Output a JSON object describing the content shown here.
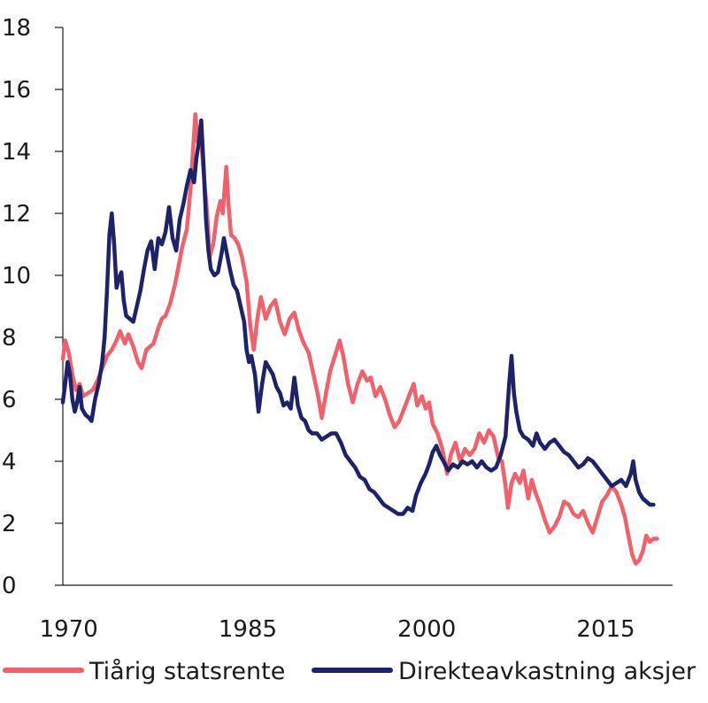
{
  "chart_data": {
    "type": "line",
    "title": "",
    "xlabel": "",
    "ylabel": "",
    "xlim": [
      1969.5,
      2020.6
    ],
    "ylim": [
      0,
      18
    ],
    "x_ticks": [
      1970,
      1985,
      2000,
      2015
    ],
    "x_tick_labels": [
      "1970",
      "1985",
      "2000",
      "2015"
    ],
    "y_ticks": [
      0,
      2,
      4,
      6,
      8,
      10,
      12,
      14,
      16,
      18
    ],
    "y_tick_labels": [
      "0",
      "2",
      "4",
      "6",
      "8",
      "10",
      "12",
      "14",
      "16",
      "18"
    ],
    "grid": false,
    "legend_position": "bottom",
    "series": [
      {
        "name": "Tiårig statsrente",
        "color": "#f0616b",
        "points": [
          [
            1969.5,
            7.3
          ],
          [
            1969.7,
            7.9
          ],
          [
            1970.0,
            7.5
          ],
          [
            1970.3,
            6.8
          ],
          [
            1970.6,
            6.3
          ],
          [
            1970.9,
            6.5
          ],
          [
            1971.2,
            6.1
          ],
          [
            1971.6,
            6.2
          ],
          [
            1972.0,
            6.3
          ],
          [
            1972.4,
            6.6
          ],
          [
            1972.8,
            7.0
          ],
          [
            1973.2,
            7.4
          ],
          [
            1973.6,
            7.6
          ],
          [
            1974.0,
            7.9
          ],
          [
            1974.3,
            8.2
          ],
          [
            1974.7,
            7.8
          ],
          [
            1975.0,
            8.1
          ],
          [
            1975.4,
            7.7
          ],
          [
            1975.8,
            7.2
          ],
          [
            1976.1,
            7.0
          ],
          [
            1976.5,
            7.6
          ],
          [
            1976.8,
            7.7
          ],
          [
            1977.1,
            7.8
          ],
          [
            1977.5,
            8.3
          ],
          [
            1977.8,
            8.6
          ],
          [
            1978.1,
            8.7
          ],
          [
            1978.5,
            9.1
          ],
          [
            1978.9,
            9.7
          ],
          [
            1979.2,
            10.3
          ],
          [
            1979.5,
            10.9
          ],
          [
            1979.9,
            11.5
          ],
          [
            1980.2,
            12.8
          ],
          [
            1980.4,
            14.0
          ],
          [
            1980.6,
            15.2
          ],
          [
            1980.8,
            14.3
          ],
          [
            1981.0,
            14.8
          ],
          [
            1981.3,
            13.3
          ],
          [
            1981.6,
            12.0
          ],
          [
            1981.8,
            10.6
          ],
          [
            1982.1,
            11.0
          ],
          [
            1982.4,
            11.9
          ],
          [
            1982.7,
            12.4
          ],
          [
            1982.9,
            12.0
          ],
          [
            1983.1,
            13.0
          ],
          [
            1983.2,
            13.5
          ],
          [
            1983.4,
            12.2
          ],
          [
            1983.6,
            11.3
          ],
          [
            1983.9,
            11.2
          ],
          [
            1984.2,
            11.0
          ],
          [
            1984.5,
            10.6
          ],
          [
            1984.9,
            9.8
          ],
          [
            1985.2,
            8.4
          ],
          [
            1985.5,
            7.6
          ],
          [
            1985.8,
            8.6
          ],
          [
            1986.1,
            9.3
          ],
          [
            1986.5,
            8.6
          ],
          [
            1986.9,
            9.0
          ],
          [
            1987.3,
            9.2
          ],
          [
            1987.7,
            8.5
          ],
          [
            1988.1,
            8.1
          ],
          [
            1988.5,
            8.6
          ],
          [
            1988.9,
            8.8
          ],
          [
            1989.3,
            8.2
          ],
          [
            1989.7,
            7.8
          ],
          [
            1990.1,
            7.5
          ],
          [
            1990.5,
            6.8
          ],
          [
            1990.9,
            6.1
          ],
          [
            1991.2,
            5.4
          ],
          [
            1991.6,
            6.3
          ],
          [
            1991.9,
            6.9
          ],
          [
            1992.3,
            7.4
          ],
          [
            1992.7,
            7.9
          ],
          [
            1993.0,
            7.4
          ],
          [
            1993.4,
            6.5
          ],
          [
            1993.8,
            5.9
          ],
          [
            1994.2,
            6.5
          ],
          [
            1994.6,
            6.9
          ],
          [
            1995.0,
            6.6
          ],
          [
            1995.3,
            6.7
          ],
          [
            1995.7,
            6.1
          ],
          [
            1996.1,
            6.4
          ],
          [
            1996.5,
            6.0
          ],
          [
            1996.9,
            5.5
          ],
          [
            1997.3,
            5.1
          ],
          [
            1997.7,
            5.3
          ],
          [
            1998.1,
            5.7
          ],
          [
            1998.5,
            6.1
          ],
          [
            1998.9,
            6.5
          ],
          [
            1999.2,
            5.8
          ],
          [
            1999.6,
            6.1
          ],
          [
            1999.9,
            5.7
          ],
          [
            2000.2,
            5.9
          ],
          [
            2000.5,
            5.2
          ],
          [
            2000.9,
            4.9
          ],
          [
            2001.3,
            4.4
          ],
          [
            2001.7,
            3.6
          ],
          [
            2002.0,
            4.2
          ],
          [
            2002.4,
            4.6
          ],
          [
            2002.8,
            4.0
          ],
          [
            2003.2,
            4.4
          ],
          [
            2003.6,
            4.2
          ],
          [
            2004.0,
            4.4
          ],
          [
            2004.4,
            4.9
          ],
          [
            2004.8,
            4.6
          ],
          [
            2005.2,
            5.0
          ],
          [
            2005.6,
            4.8
          ],
          [
            2006.0,
            4.1
          ],
          [
            2006.3,
            4.0
          ],
          [
            2006.6,
            3.2
          ],
          [
            2006.8,
            2.5
          ],
          [
            2007.1,
            3.3
          ],
          [
            2007.4,
            3.6
          ],
          [
            2007.8,
            3.3
          ],
          [
            2008.1,
            3.7
          ],
          [
            2008.5,
            2.8
          ],
          [
            2008.8,
            3.4
          ],
          [
            2009.1,
            3.0
          ],
          [
            2009.5,
            2.6
          ],
          [
            2009.9,
            2.1
          ],
          [
            2010.3,
            1.7
          ],
          [
            2010.7,
            1.9
          ],
          [
            2011.1,
            2.2
          ],
          [
            2011.5,
            2.7
          ],
          [
            2011.9,
            2.6
          ],
          [
            2012.3,
            2.3
          ],
          [
            2012.7,
            2.2
          ],
          [
            2013.1,
            2.4
          ],
          [
            2013.5,
            2.0
          ],
          [
            2013.9,
            1.7
          ],
          [
            2014.3,
            2.2
          ],
          [
            2014.7,
            2.7
          ],
          [
            2015.1,
            2.9
          ],
          [
            2015.5,
            3.2
          ],
          [
            2015.9,
            3.0
          ],
          [
            2016.3,
            2.6
          ],
          [
            2016.6,
            2.2
          ],
          [
            2016.9,
            1.6
          ],
          [
            2017.2,
            1.0
          ],
          [
            2017.5,
            0.7
          ],
          [
            2017.8,
            0.8
          ],
          [
            2018.1,
            1.1
          ],
          [
            2018.4,
            1.6
          ],
          [
            2018.7,
            1.4
          ],
          [
            2019.0,
            1.5
          ],
          [
            2019.3,
            1.5
          ]
        ]
      },
      {
        "name": "Direkteavkastning aksjer",
        "color": "#1e2268",
        "points": [
          [
            1969.5,
            5.9
          ],
          [
            1969.7,
            6.5
          ],
          [
            1969.9,
            7.2
          ],
          [
            1970.1,
            6.8
          ],
          [
            1970.3,
            6.0
          ],
          [
            1970.5,
            5.6
          ],
          [
            1970.7,
            5.9
          ],
          [
            1970.9,
            6.4
          ],
          [
            1971.1,
            5.7
          ],
          [
            1971.4,
            5.5
          ],
          [
            1971.7,
            5.4
          ],
          [
            1971.9,
            5.3
          ],
          [
            1972.2,
            6.0
          ],
          [
            1972.5,
            6.5
          ],
          [
            1972.8,
            7.2
          ],
          [
            1973.0,
            8.0
          ],
          [
            1973.2,
            9.5
          ],
          [
            1973.4,
            11.3
          ],
          [
            1973.6,
            12.0
          ],
          [
            1973.8,
            11.0
          ],
          [
            1974.0,
            9.6
          ],
          [
            1974.2,
            9.9
          ],
          [
            1974.4,
            10.1
          ],
          [
            1974.6,
            9.2
          ],
          [
            1974.8,
            8.7
          ],
          [
            1975.1,
            8.6
          ],
          [
            1975.4,
            8.5
          ],
          [
            1975.7,
            9.0
          ],
          [
            1976.0,
            9.5
          ],
          [
            1976.3,
            10.2
          ],
          [
            1976.6,
            10.8
          ],
          [
            1976.9,
            11.1
          ],
          [
            1977.2,
            10.2
          ],
          [
            1977.5,
            11.2
          ],
          [
            1977.8,
            11.0
          ],
          [
            1978.1,
            11.4
          ],
          [
            1978.4,
            12.2
          ],
          [
            1978.7,
            11.2
          ],
          [
            1979.0,
            10.8
          ],
          [
            1979.3,
            11.8
          ],
          [
            1979.6,
            12.3
          ],
          [
            1979.9,
            12.9
          ],
          [
            1980.2,
            13.4
          ],
          [
            1980.5,
            13.0
          ],
          [
            1980.7,
            13.8
          ],
          [
            1980.9,
            14.3
          ],
          [
            1981.1,
            15.0
          ],
          [
            1981.3,
            13.5
          ],
          [
            1981.5,
            11.8
          ],
          [
            1981.7,
            10.8
          ],
          [
            1981.9,
            10.2
          ],
          [
            1982.2,
            10.0
          ],
          [
            1982.5,
            10.1
          ],
          [
            1982.8,
            10.7
          ],
          [
            1983.0,
            11.2
          ],
          [
            1983.2,
            10.8
          ],
          [
            1983.5,
            10.2
          ],
          [
            1983.8,
            9.7
          ],
          [
            1984.1,
            9.5
          ],
          [
            1984.4,
            9.0
          ],
          [
            1984.7,
            8.5
          ],
          [
            1984.9,
            7.6
          ],
          [
            1985.1,
            7.2
          ],
          [
            1985.3,
            7.4
          ],
          [
            1985.6,
            6.8
          ],
          [
            1985.9,
            5.6
          ],
          [
            1986.2,
            6.5
          ],
          [
            1986.5,
            7.2
          ],
          [
            1986.8,
            7.0
          ],
          [
            1987.1,
            6.8
          ],
          [
            1987.4,
            6.4
          ],
          [
            1987.7,
            6.2
          ],
          [
            1988.0,
            5.8
          ],
          [
            1988.3,
            5.9
          ],
          [
            1988.6,
            5.7
          ],
          [
            1988.9,
            6.7
          ],
          [
            1989.2,
            5.8
          ],
          [
            1989.5,
            5.4
          ],
          [
            1989.8,
            5.3
          ],
          [
            1990.1,
            5.0
          ],
          [
            1990.4,
            4.9
          ],
          [
            1990.8,
            4.9
          ],
          [
            1991.2,
            4.7
          ],
          [
            1991.6,
            4.8
          ],
          [
            1992.0,
            4.9
          ],
          [
            1992.4,
            4.9
          ],
          [
            1992.8,
            4.6
          ],
          [
            1993.2,
            4.2
          ],
          [
            1993.6,
            4.0
          ],
          [
            1994.0,
            3.8
          ],
          [
            1994.4,
            3.5
          ],
          [
            1994.8,
            3.4
          ],
          [
            1995.2,
            3.1
          ],
          [
            1995.6,
            3.0
          ],
          [
            1996.0,
            2.8
          ],
          [
            1996.4,
            2.6
          ],
          [
            1996.8,
            2.5
          ],
          [
            1997.2,
            2.4
          ],
          [
            1997.6,
            2.3
          ],
          [
            1998.0,
            2.3
          ],
          [
            1998.4,
            2.5
          ],
          [
            1998.8,
            2.4
          ],
          [
            1999.1,
            2.9
          ],
          [
            1999.5,
            3.3
          ],
          [
            1999.9,
            3.6
          ],
          [
            2000.2,
            3.9
          ],
          [
            2000.5,
            4.3
          ],
          [
            2000.8,
            4.5
          ],
          [
            2001.1,
            4.2
          ],
          [
            2001.4,
            4.0
          ],
          [
            2001.8,
            3.7
          ],
          [
            2002.2,
            3.9
          ],
          [
            2002.6,
            3.8
          ],
          [
            2003.0,
            4.0
          ],
          [
            2003.4,
            3.9
          ],
          [
            2003.8,
            4.0
          ],
          [
            2004.2,
            3.8
          ],
          [
            2004.6,
            4.0
          ],
          [
            2005.0,
            3.8
          ],
          [
            2005.4,
            3.7
          ],
          [
            2005.8,
            3.8
          ],
          [
            2006.2,
            4.2
          ],
          [
            2006.6,
            4.8
          ],
          [
            2006.9,
            6.5
          ],
          [
            2007.1,
            7.4
          ],
          [
            2007.3,
            6.2
          ],
          [
            2007.5,
            5.6
          ],
          [
            2007.8,
            5.0
          ],
          [
            2008.1,
            4.8
          ],
          [
            2008.5,
            4.7
          ],
          [
            2008.9,
            4.5
          ],
          [
            2009.2,
            4.9
          ],
          [
            2009.5,
            4.6
          ],
          [
            2009.9,
            4.4
          ],
          [
            2010.3,
            4.6
          ],
          [
            2010.7,
            4.7
          ],
          [
            2011.1,
            4.5
          ],
          [
            2011.5,
            4.3
          ],
          [
            2011.9,
            4.2
          ],
          [
            2012.3,
            4.0
          ],
          [
            2012.7,
            3.8
          ],
          [
            2013.1,
            3.9
          ],
          [
            2013.5,
            4.1
          ],
          [
            2013.9,
            4.0
          ],
          [
            2014.3,
            3.8
          ],
          [
            2014.7,
            3.6
          ],
          [
            2015.1,
            3.4
          ],
          [
            2015.5,
            3.2
          ],
          [
            2015.9,
            3.3
          ],
          [
            2016.3,
            3.4
          ],
          [
            2016.7,
            3.2
          ],
          [
            2017.1,
            3.6
          ],
          [
            2017.3,
            4.0
          ],
          [
            2017.5,
            3.4
          ],
          [
            2017.8,
            3.0
          ],
          [
            2018.1,
            2.8
          ],
          [
            2018.4,
            2.7
          ],
          [
            2018.7,
            2.6
          ],
          [
            2019.0,
            2.6
          ]
        ]
      }
    ]
  }
}
